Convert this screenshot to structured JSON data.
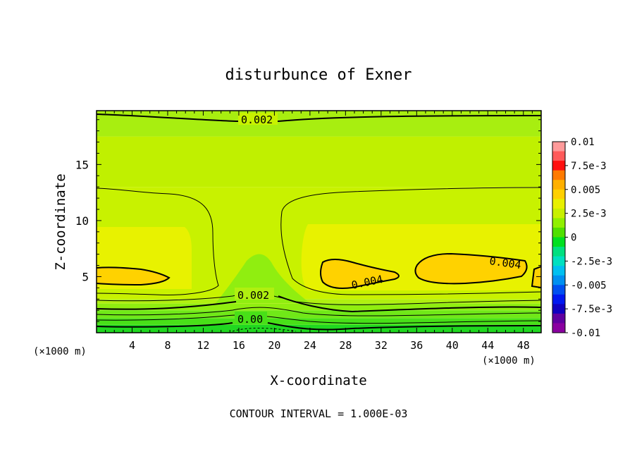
{
  "chart_data": {
    "type": "heatmap",
    "title": "disturbunce of Exner",
    "xlabel": "X-coordinate",
    "ylabel": "Z-coordinate",
    "x_unit": "(×1000 m)",
    "x_unit_right": "(×1000 m)",
    "xlim": [
      0,
      50
    ],
    "ylim": [
      0,
      19.8
    ],
    "x_ticks": [
      4,
      8,
      12,
      16,
      20,
      24,
      28,
      32,
      36,
      40,
      44,
      48
    ],
    "y_ticks": [
      5,
      10,
      15
    ],
    "footer": "CONTOUR INTERVAL = 1.000E-03",
    "contour_labels": [
      "0.002",
      "0.002",
      "0.00",
      "0.004",
      "0.004"
    ],
    "colorbar": {
      "labels": [
        "0.01",
        "7.5e-3",
        "0.005",
        "2.5e-3",
        "0",
        "-2.5e-3",
        "-0.005",
        "-7.5e-3",
        "-0.01"
      ],
      "colors": [
        "#ff9a9a",
        "#ff5a5a",
        "#ff1010",
        "#ff7a00",
        "#ffb000",
        "#ffd000",
        "#e8f000",
        "#c8f000",
        "#90f000",
        "#50e000",
        "#00e020",
        "#00e080",
        "#00e0c0",
        "#00c0f0",
        "#0090f0",
        "#0050f0",
        "#0018f0",
        "#1000c0",
        "#6000a0",
        "#8a00a0"
      ]
    },
    "bands": [
      {
        "z": [
          0,
          0.7
        ],
        "value": -0.0005,
        "color": "#20d820"
      },
      {
        "z": [
          0.7,
          1.3
        ],
        "value": 0.0003,
        "color": "#48e018"
      },
      {
        "z": [
          1.3,
          2.0
        ],
        "value": 0.001,
        "color": "#70e818"
      },
      {
        "z": [
          2.0,
          2.6
        ],
        "value": 0.0015,
        "color": "#90ee10"
      },
      {
        "z": [
          2.6,
          3.0
        ],
        "value": 0.002,
        "color": "#b0f010"
      },
      {
        "z": [
          3.0,
          13.0
        ],
        "value": 0.0025,
        "color": "#c8f200"
      },
      {
        "z": [
          13.0,
          17.5
        ],
        "value": 0.0022,
        "color": "#c0f000"
      },
      {
        "z": [
          17.5,
          19.8
        ],
        "value": 0.0018,
        "color": "#a8ee10"
      }
    ]
  }
}
